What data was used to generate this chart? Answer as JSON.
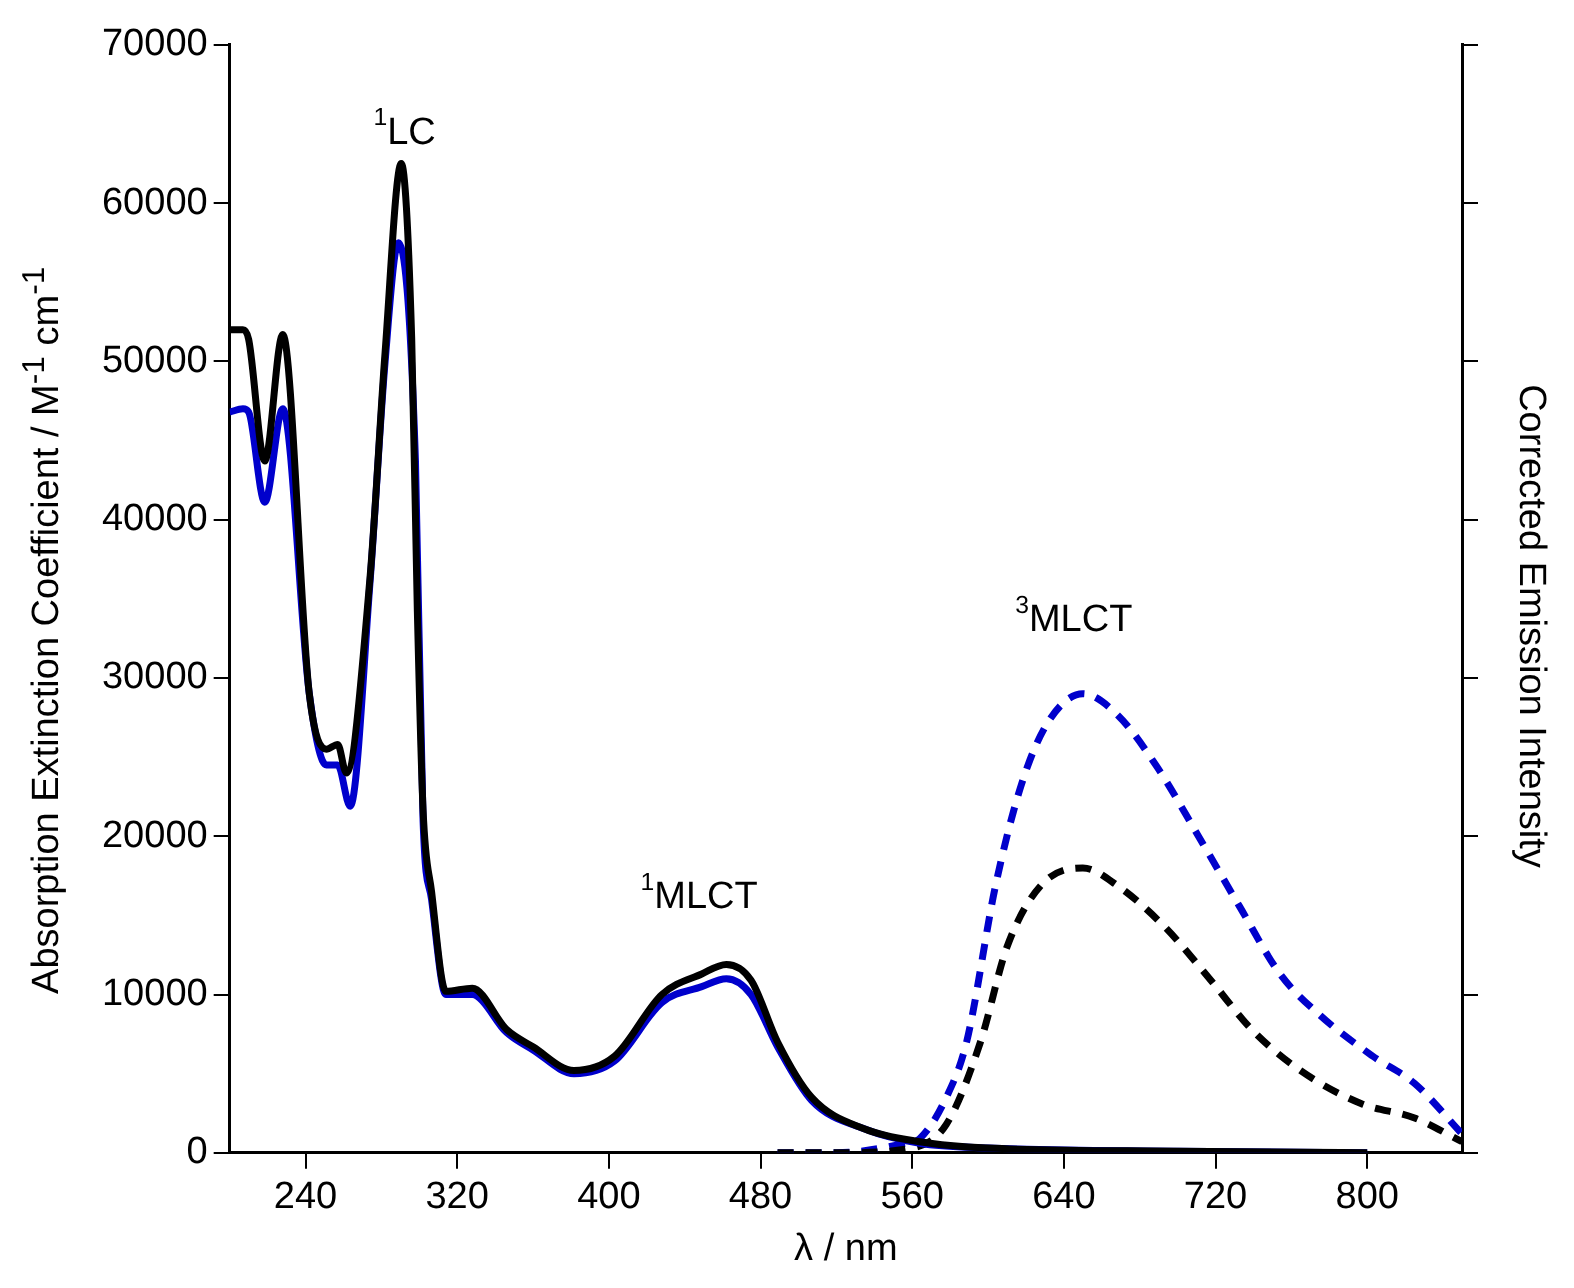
{
  "chart_data": {
    "type": "line",
    "xlabel": "λ / nm",
    "ylabel": "Absorption Extinction Coefficient / M$^{-1}$ cm$^{-1}$",
    "y2label": "Corrected Emission Intensity",
    "xlim": [
      200,
      850
    ],
    "xticks": [
      240,
      320,
      400,
      480,
      560,
      640,
      720,
      800
    ],
    "ylim": [
      0,
      70000
    ],
    "yticks": [
      0,
      10000,
      20000,
      30000,
      40000,
      50000,
      60000,
      70000
    ],
    "grid": false,
    "legend": false,
    "marker": "none",
    "annotations": [
      "$^{1}$LC",
      "$^{1}$MLCT",
      "$^{3}$MLCT"
    ],
    "series": [
      {
        "color": "#000000",
        "line_style": "solid",
        "x": [
          200,
          207,
          210,
          218.5,
          228,
          242,
          251,
          257,
          261.5,
          274,
          282,
          290.5,
          296,
          299,
          302,
          306.5,
          314,
          328,
          346,
          360,
          381.6,
          403,
          428,
          449,
          462,
          475,
          489,
          507,
          535,
          564,
          600,
          700,
          800
        ],
        "values": [
          52000,
          52000,
          51400,
          43700,
          51700,
          29000,
          25500,
          25800,
          24000,
          36300,
          50600,
          62500,
          51500,
          34200,
          21700,
          16500,
          10200,
          10400,
          7800,
          6700,
          5200,
          6100,
          10000,
          11300,
          11900,
          10900,
          7000,
          3500,
          1500,
          700,
          300,
          100,
          0
        ]
      },
      {
        "color": "#0000cc",
        "line_style": "solid",
        "x": [
          200,
          207,
          210,
          218.5,
          228,
          242,
          251,
          257,
          263.6,
          274,
          282,
          289,
          298,
          302,
          306.5,
          314,
          328,
          346,
          360,
          381.6,
          403,
          428,
          449,
          462,
          475,
          489,
          507,
          535,
          564,
          600,
          700,
          800
        ],
        "values": [
          46800,
          47000,
          46800,
          41100,
          47000,
          29000,
          24500,
          24500,
          21900,
          36000,
          50000,
          57500,
          43700,
          21000,
          16000,
          10000,
          10000,
          7600,
          6500,
          5000,
          5800,
          9500,
          10500,
          11000,
          10000,
          6700,
          3300,
          1500,
          600,
          300,
          100,
          0
        ]
      },
      {
        "color": "#000000",
        "line_style": "dashed",
        "x": [
          489,
          520,
          560,
          578,
          596,
          610,
          628,
          650,
          668,
          693,
          717.5,
          739,
          764.7,
          797,
          825,
          850
        ],
        "values": [
          0,
          0,
          300,
          1800,
          7000,
          13000,
          16900,
          18000,
          16900,
          14300,
          10900,
          7800,
          5200,
          3100,
          2200,
          700
        ]
      },
      {
        "color": "#0000cc",
        "line_style": "dashed",
        "x": [
          489,
          520,
          556,
          564,
          578,
          588.7,
          604,
          617.7,
          631.6,
          650,
          668,
          689.6,
          711,
          732.5,
          754,
          775,
          803,
          824.8,
          850
        ],
        "values": [
          0,
          0,
          600,
          900,
          3500,
          7000,
          16900,
          23300,
          27200,
          29000,
          27700,
          24300,
          20000,
          15600,
          11300,
          8700,
          6100,
          4400,
          1200
        ]
      }
    ]
  }
}
